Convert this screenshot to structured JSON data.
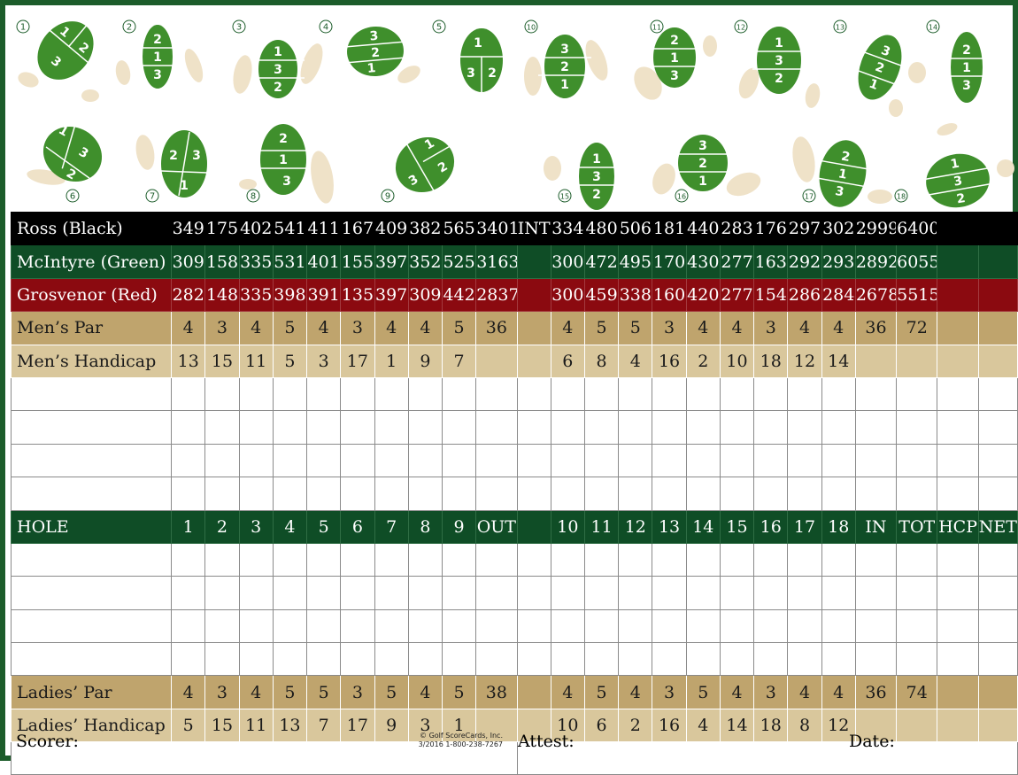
{
  "greens": [
    {
      "hole": "1",
      "nums": [
        "1",
        "2",
        "3"
      ]
    },
    {
      "hole": "2",
      "nums": [
        "2",
        "1",
        "3"
      ]
    },
    {
      "hole": "3",
      "nums": [
        "1",
        "3",
        "2"
      ]
    },
    {
      "hole": "4",
      "nums": [
        "3",
        "2",
        "1"
      ]
    },
    {
      "hole": "5",
      "nums": [
        "1",
        "3",
        "2"
      ]
    },
    {
      "hole": "10",
      "nums": [
        "3",
        "2",
        "1"
      ]
    },
    {
      "hole": "11",
      "nums": [
        "2",
        "1",
        "3"
      ]
    },
    {
      "hole": "12",
      "nums": [
        "1",
        "3",
        "2"
      ]
    },
    {
      "hole": "13",
      "nums": [
        "3",
        "2",
        "1"
      ]
    },
    {
      "hole": "14",
      "nums": [
        "2",
        "1",
        "3"
      ]
    },
    {
      "hole": "6",
      "nums": [
        "1",
        "3",
        "2"
      ]
    },
    {
      "hole": "7",
      "nums": [
        "2",
        "3",
        "1"
      ]
    },
    {
      "hole": "8",
      "nums": [
        "2",
        "1",
        "3"
      ]
    },
    {
      "hole": "9",
      "nums": [
        "1",
        "3",
        "2"
      ]
    },
    {
      "hole": "15",
      "nums": [
        "1",
        "3",
        "2"
      ]
    },
    {
      "hole": "16",
      "nums": [
        "3",
        "2",
        "1"
      ]
    },
    {
      "hole": "17",
      "nums": [
        "2",
        "1",
        "3"
      ]
    },
    {
      "hole": "18",
      "nums": [
        "1",
        "3",
        "2"
      ]
    }
  ],
  "tee_rows": [
    {
      "label": "Ross (Black)",
      "cells": [
        "349",
        "175",
        "402",
        "541",
        "411",
        "167",
        "409",
        "382",
        "565",
        "3401",
        "INT",
        "334",
        "480",
        "506",
        "181",
        "440",
        "283",
        "176",
        "297",
        "302",
        "2999",
        "6400",
        "",
        ""
      ],
      "style": "ross"
    },
    {
      "label": "McIntyre (Green)",
      "cells": [
        "309",
        "158",
        "335",
        "531",
        "401",
        "155",
        "397",
        "352",
        "525",
        "3163",
        "",
        "300",
        "472",
        "495",
        "170",
        "430",
        "277",
        "163",
        "292",
        "293",
        "2892",
        "6055",
        "",
        ""
      ],
      "style": "green"
    },
    {
      "label": "Grosvenor (Red)",
      "cells": [
        "282",
        "148",
        "335",
        "398",
        "391",
        "135",
        "397",
        "309",
        "442",
        "2837",
        "",
        "300",
        "459",
        "338",
        "160",
        "420",
        "277",
        "154",
        "286",
        "284",
        "2678",
        "5515",
        "",
        ""
      ],
      "style": "red"
    },
    {
      "label": "Men’s Par",
      "cells": [
        "4",
        "3",
        "4",
        "5",
        "4",
        "3",
        "4",
        "4",
        "5",
        "36",
        "",
        "4",
        "5",
        "5",
        "3",
        "4",
        "4",
        "3",
        "4",
        "4",
        "36",
        "72",
        "",
        ""
      ],
      "style": "par"
    },
    {
      "label": "Men’s Handicap",
      "cells": [
        "13",
        "15",
        "11",
        "5",
        "3",
        "17",
        "1",
        "9",
        "7",
        "",
        "",
        "6",
        "8",
        "4",
        "16",
        "2",
        "10",
        "18",
        "12",
        "14",
        "",
        "",
        "",
        ""
      ],
      "style": "hcp"
    }
  ],
  "hole_row": {
    "label": "HOLE",
    "cells": [
      "1",
      "2",
      "3",
      "4",
      "5",
      "6",
      "7",
      "8",
      "9",
      "OUT",
      "",
      "10",
      "11",
      "12",
      "13",
      "14",
      "15",
      "16",
      "17",
      "18",
      "IN",
      "TOT",
      "HCP",
      "NET"
    ]
  },
  "ladies_rows": [
    {
      "label": "Ladies’ Par",
      "cells": [
        "4",
        "3",
        "4",
        "5",
        "5",
        "3",
        "5",
        "4",
        "5",
        "38",
        "",
        "4",
        "5",
        "4",
        "3",
        "5",
        "4",
        "3",
        "4",
        "4",
        "36",
        "74",
        "",
        ""
      ],
      "style": "par"
    },
    {
      "label": "Ladies’ Handicap",
      "cells": [
        "5",
        "15",
        "11",
        "13",
        "7",
        "17",
        "9",
        "3",
        "1",
        "",
        "",
        "10",
        "6",
        "2",
        "16",
        "4",
        "14",
        "18",
        "8",
        "12",
        "",
        "",
        "",
        ""
      ],
      "style": "hcp"
    }
  ],
  "footer": {
    "scorer": "Scorer:",
    "attest": "Attest:",
    "date": "Date:",
    "copyright_line1": "© Golf ScoreCards, Inc.",
    "copyright_line2": "3/2016   1-800-238-7267"
  },
  "colors": {
    "dark_green": "#0f4d26",
    "black": "#000000",
    "red": "#8b0a10",
    "tan": "#bfa46d",
    "light_tan": "#d9c79c",
    "green_fill": "#3f8f2c",
    "sand": "#efe2c8"
  }
}
